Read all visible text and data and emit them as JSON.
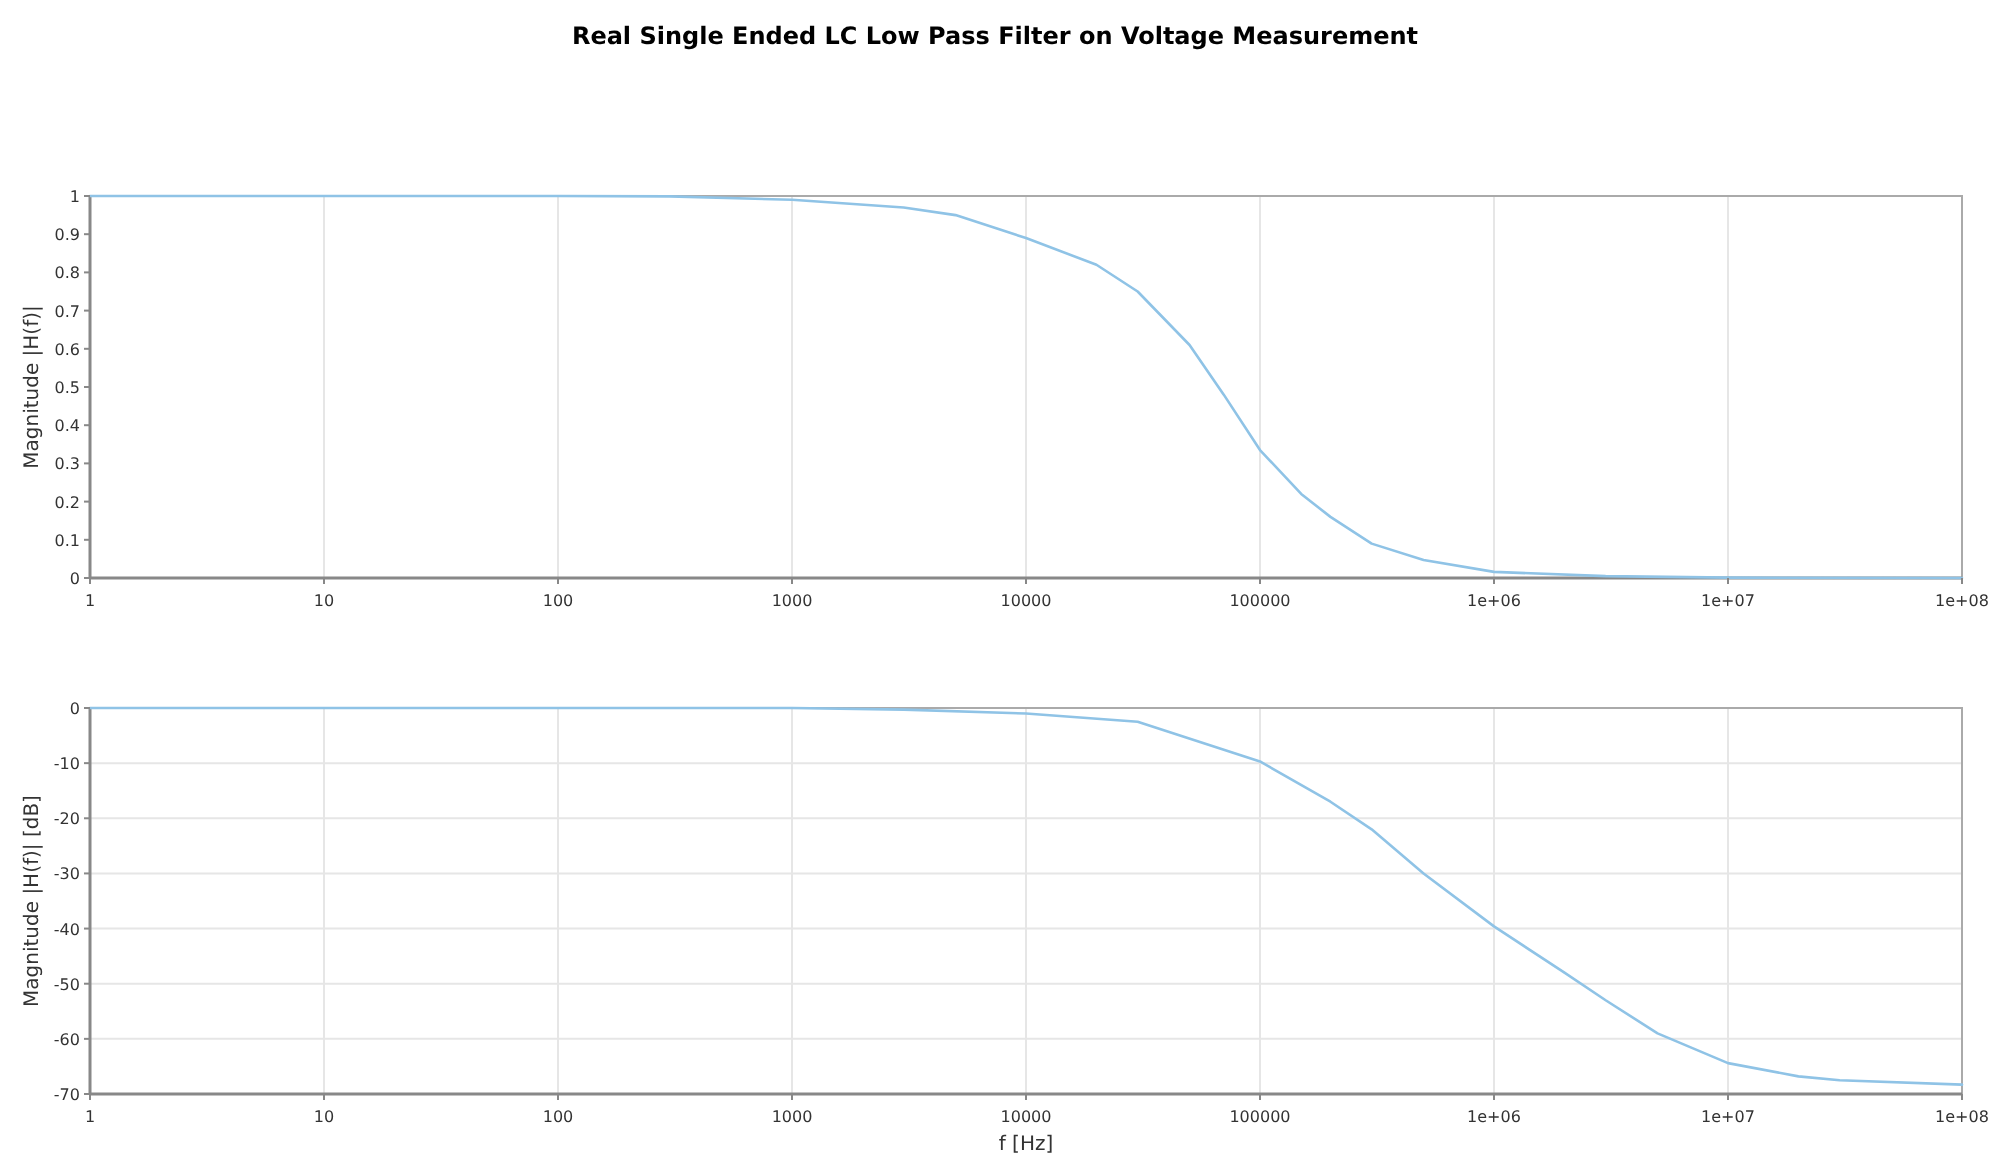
{
  "chart_data": [
    {
      "type": "line",
      "title": "Real Single Ended LC Low Pass Filter on Voltage Measurement",
      "ylabel": "Magnitude |H(f)|",
      "log": "x",
      "grid": "x",
      "xlim": [
        1,
        100000000
      ],
      "ylim": [
        0,
        1
      ],
      "xticks": [
        1,
        10,
        100,
        1000,
        10000,
        100000,
        {
          "value": 1000000,
          "label": "1e+06"
        },
        {
          "value": 10000000,
          "label": "1e+07"
        },
        {
          "value": 100000000,
          "label": "1e+08"
        }
      ],
      "yticks": [
        0,
        0.1,
        0.2,
        0.3,
        0.4,
        0.5,
        0.6,
        0.7,
        0.8,
        0.9,
        1
      ],
      "series": [
        {
          "color": "#8fc3e6",
          "x": [
            1,
            10,
            100,
            300,
            1000,
            3000,
            5000,
            10000,
            20000,
            30000,
            50000,
            70000,
            100000,
            150000,
            200000,
            300000,
            500000,
            1000000,
            3000000,
            10000000,
            100000000
          ],
          "values": [
            1,
            1,
            1,
            0.999,
            0.99,
            0.97,
            0.95,
            0.89,
            0.82,
            0.75,
            0.61,
            0.48,
            0.335,
            0.22,
            0.16,
            0.09,
            0.047,
            0.016,
            0.005,
            0.001,
            0
          ]
        }
      ]
    },
    {
      "type": "line",
      "xlabel": "f [Hz]",
      "ylabel": "Magnitude |H(f)| [dB]",
      "log": "x",
      "grid": true,
      "xlim": [
        1,
        100000000
      ],
      "ylim": [
        -70,
        0
      ],
      "xticks": [
        1,
        10,
        100,
        1000,
        10000,
        100000,
        {
          "value": 1000000,
          "label": "1e+06"
        },
        {
          "value": 10000000,
          "label": "1e+07"
        },
        {
          "value": 100000000,
          "label": "1e+08"
        }
      ],
      "yticks": [
        -70,
        -60,
        -50,
        -40,
        -30,
        -20,
        -10,
        0
      ],
      "series": [
        {
          "color": "#8fc3e6",
          "x": [
            1,
            10,
            100,
            1000,
            3000,
            10000,
            30000,
            100000,
            200000,
            300000,
            500000,
            1000000,
            2000000,
            3000000,
            5000000,
            10000000,
            20000000,
            30000000,
            100000000
          ],
          "values": [
            0,
            0,
            0,
            0,
            -0.3,
            -1,
            -2.5,
            -9.7,
            -17,
            -22,
            -30,
            -39.6,
            -48,
            -53,
            -59,
            -64.4,
            -66.8,
            -67.5,
            -68.3
          ]
        }
      ]
    }
  ]
}
